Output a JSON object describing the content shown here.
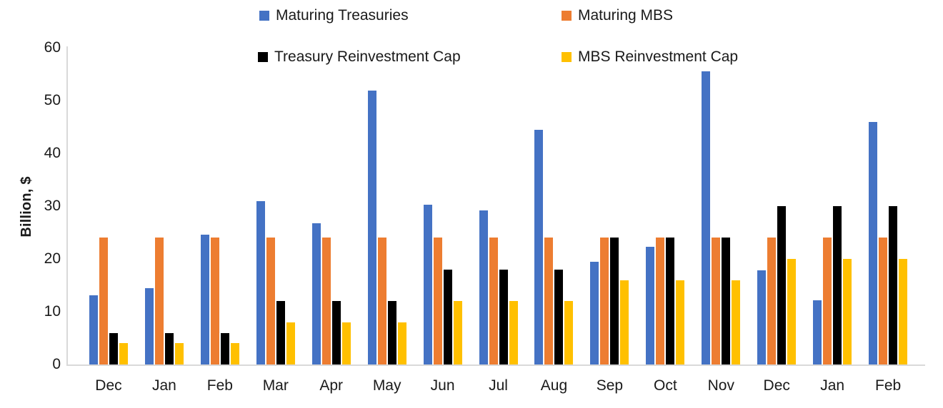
{
  "chart_data": {
    "type": "bar",
    "title": "",
    "categories": [
      "Dec",
      "Jan",
      "Feb",
      "Mar",
      "Apr",
      "May",
      "Jun",
      "Jul",
      "Aug",
      "Sep",
      "Oct",
      "Nov",
      "Dec",
      "Jan",
      "Feb"
    ],
    "series": [
      {
        "name": "Maturing Treasuries",
        "color": "#4472C4",
        "values": [
          13.1,
          14.4,
          24.6,
          31.0,
          26.8,
          51.9,
          30.3,
          29.2,
          44.5,
          19.4,
          22.3,
          55.6,
          17.9,
          12.2,
          45.9
        ]
      },
      {
        "name": "Maturing MBS",
        "color": "#ED7D31",
        "values": [
          24,
          24,
          24,
          24,
          24,
          24,
          24,
          24,
          24,
          24,
          24,
          24,
          24,
          24,
          24
        ]
      },
      {
        "name": "Treasury Reinvestment Cap",
        "color": "#000000",
        "values": [
          6,
          6,
          6,
          12,
          12,
          12,
          18,
          18,
          18,
          24,
          24,
          24,
          30,
          30,
          30
        ]
      },
      {
        "name": "MBS Reinvestment Cap",
        "color": "#FFC000",
        "values": [
          4,
          4,
          4,
          8,
          8,
          8,
          12,
          12,
          12,
          16,
          16,
          16,
          20,
          20,
          20
        ]
      }
    ],
    "xlabel": "",
    "ylabel": "Billion, $",
    "ylim": [
      0,
      60
    ],
    "yticks": [
      0,
      10,
      20,
      30,
      40,
      50,
      60
    ],
    "grid": false,
    "legend_position": "top-two-columns"
  },
  "colors": {
    "axis_line": "#D9D9D9",
    "text": "#1a1a1a"
  }
}
